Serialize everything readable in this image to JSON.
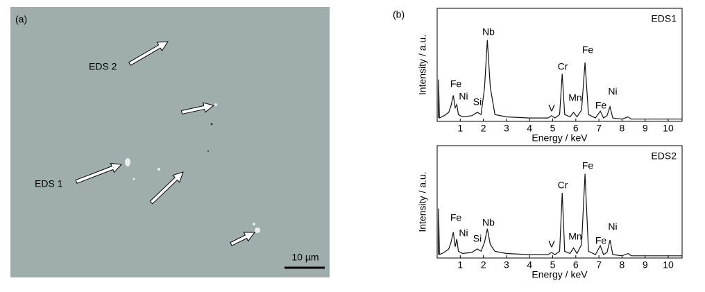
{
  "image": {
    "label": "(a)",
    "annotations": [
      "EDS 2",
      "EDS 1"
    ],
    "scale_bar": "10 µm"
  },
  "panel_b_label": "(b)",
  "chart_data": [
    {
      "type": "line",
      "title": "EDS1",
      "x_label": "Energy / keV",
      "y_label": "Intensity / a.u.",
      "x": [
        0.05,
        0.06,
        0.1,
        0.3,
        0.5,
        0.6,
        0.7,
        0.78,
        0.85,
        0.92,
        1.1,
        1.5,
        1.74,
        1.9,
        2.05,
        2.17,
        2.3,
        2.5,
        3,
        4,
        4.8,
        4.95,
        5.1,
        5.3,
        5.41,
        5.52,
        5.75,
        5.9,
        6.05,
        6.25,
        6.4,
        6.55,
        6.85,
        7.06,
        7.2,
        7.35,
        7.48,
        7.6,
        8,
        8.26,
        8.4,
        9,
        10,
        10.6
      ],
      "values": [
        3,
        37,
        3,
        5,
        8,
        14,
        23,
        12,
        15,
        6,
        4,
        5,
        8,
        6,
        30,
        72,
        30,
        6,
        4,
        3,
        3,
        5,
        3,
        6,
        42,
        6,
        4,
        8,
        4,
        10,
        52,
        6,
        3,
        9,
        3,
        5,
        13,
        3,
        2,
        4,
        2,
        2,
        2,
        2
      ],
      "color": "#111111",
      "xlim": [
        0,
        10.6
      ],
      "ylim": [
        0,
        100
      ],
      "xticks": [
        1,
        2,
        3,
        4,
        5,
        6,
        7,
        8,
        9,
        10
      ],
      "annotations": [
        "Fe",
        "Ni",
        "Si",
        "Nb",
        "V",
        "Cr",
        "Mn",
        "Fe",
        "Fe",
        "Ni"
      ]
    },
    {
      "type": "line",
      "title": "EDS2",
      "x_label": "Energy / keV",
      "y_label": "Intensity / a.u.",
      "x": [
        0.05,
        0.06,
        0.1,
        0.3,
        0.5,
        0.6,
        0.7,
        0.78,
        0.85,
        0.92,
        1.1,
        1.5,
        1.74,
        1.9,
        2.05,
        2.17,
        2.3,
        2.5,
        3,
        4,
        4.8,
        4.95,
        5.1,
        5.3,
        5.41,
        5.52,
        5.75,
        5.9,
        6.05,
        6.25,
        6.4,
        6.55,
        6.85,
        7.06,
        7.2,
        7.35,
        7.48,
        7.6,
        8,
        8.26,
        8.4,
        9,
        10,
        10.6
      ],
      "values": [
        3,
        44,
        3,
        5,
        8,
        14,
        23,
        10,
        17,
        6,
        4,
        5,
        8,
        6,
        14,
        26,
        12,
        6,
        4,
        3,
        3,
        5,
        3,
        6,
        58,
        6,
        4,
        9,
        4,
        12,
        75,
        6,
        3,
        11,
        3,
        5,
        16,
        3,
        2,
        4,
        2,
        2,
        2,
        2
      ],
      "color": "#111111",
      "xlim": [
        0,
        10.6
      ],
      "ylim": [
        0,
        100
      ],
      "xticks": [
        1,
        2,
        3,
        4,
        5,
        6,
        7,
        8,
        9,
        10
      ],
      "annotations": [
        "Fe",
        "Ni",
        "Si",
        "Nb",
        "V",
        "Cr",
        "Mn",
        "Fe",
        "Fe",
        "Ni"
      ]
    }
  ]
}
